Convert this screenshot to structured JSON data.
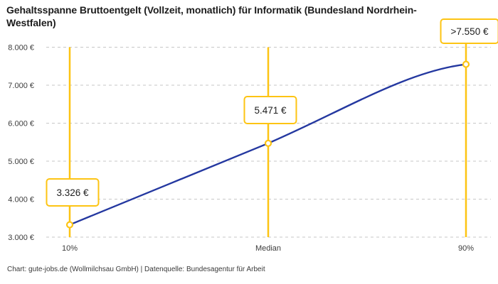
{
  "title": "Gehaltsspanne Bruttoentgelt (Vollzeit, monatlich) für Informatik (Bundesland Nordrhein-Westfalen)",
  "footer": "Chart: gute-jobs.de (Wollmilchsau GmbH) | Datenquelle: Bundesagentur für Arbeit",
  "chart_data": {
    "type": "line",
    "x": [
      "10%",
      "Median",
      "90%"
    ],
    "values": [
      3326,
      5471,
      7550
    ],
    "point_labels": [
      "3.326 €",
      "5.471 €",
      ">7.550 €"
    ],
    "point_names": [
      "p10",
      "median",
      "p90"
    ],
    "ylim": [
      3000,
      8000
    ],
    "y_ticks": [
      3000,
      4000,
      5000,
      6000,
      7000,
      8000
    ],
    "y_tick_labels": [
      "3.000 €",
      "4.000 €",
      "5.000 €",
      "6.000 €",
      "7.000 €",
      "8.000 €"
    ],
    "grid": "horizontal-dashed",
    "legend": "none",
    "colors": {
      "line": "#2438a0",
      "marker_fill": "#ffffff",
      "marker_stroke": "#fdc413",
      "vertical_lines": "#fdc413",
      "label_box_border": "#fdc413",
      "grid": "#c7c7c7",
      "text": "#3c3c3c",
      "title": "#1c1c1c"
    }
  }
}
